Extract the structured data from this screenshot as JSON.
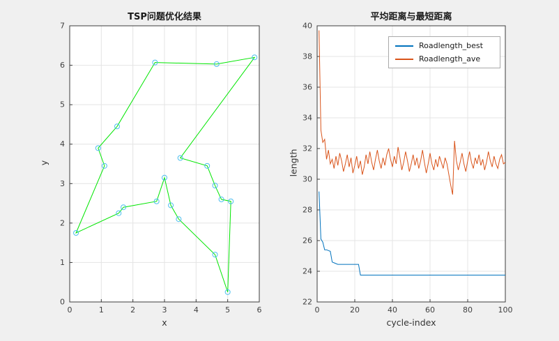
{
  "figure": {
    "bg": "#f0f0f0",
    "axes_bg": "#ffffff",
    "grid_color": "#e4e4e4",
    "axis_color": "#3b3b3b",
    "tick_label_color": "#404040"
  },
  "chart_data": [
    {
      "type": "scatter",
      "title": "TSP问题优化结果",
      "xlabel": "x",
      "ylabel": "y",
      "xlim": [
        0,
        6
      ],
      "ylim": [
        0,
        7
      ],
      "xticks": [
        0,
        1,
        2,
        3,
        4,
        5,
        6
      ],
      "yticks": [
        0,
        1,
        2,
        3,
        4,
        5,
        6,
        7
      ],
      "grid": true,
      "tour_color": "#00e600",
      "marker_color": "#4dbeee",
      "tour_closed": true,
      "points": [
        [
          0.2,
          1.75
        ],
        [
          1.1,
          3.45
        ],
        [
          0.9,
          3.9
        ],
        [
          1.5,
          4.45
        ],
        [
          2.7,
          6.07
        ],
        [
          4.65,
          6.03
        ],
        [
          5.85,
          6.2
        ],
        [
          3.5,
          3.65
        ],
        [
          4.35,
          3.45
        ],
        [
          4.6,
          2.95
        ],
        [
          4.8,
          2.6
        ],
        [
          5.1,
          2.55
        ],
        [
          5.0,
          0.25
        ],
        [
          4.6,
          1.2
        ],
        [
          3.45,
          2.1
        ],
        [
          3.2,
          2.45
        ],
        [
          3.0,
          3.15
        ],
        [
          2.75,
          2.55
        ],
        [
          1.7,
          2.4
        ],
        [
          1.55,
          2.25
        ]
      ]
    },
    {
      "type": "line",
      "title": "平均距离与最短距离",
      "xlabel": "cycle-index",
      "ylabel": "length",
      "xlim": [
        0,
        100
      ],
      "ylim": [
        22,
        40
      ],
      "xticks": [
        0,
        20,
        40,
        60,
        80,
        100
      ],
      "yticks": [
        22,
        24,
        26,
        28,
        30,
        32,
        34,
        36,
        38,
        40
      ],
      "grid": true,
      "legend_position": "top-right",
      "x_start": 1,
      "x_step": 1,
      "series": [
        {
          "name": "Roadlength_best",
          "color": "#0072bd",
          "values": [
            29.2,
            26.1,
            25.9,
            25.4,
            25.4,
            25.35,
            25.3,
            24.6,
            24.55,
            24.5,
            24.45,
            24.45,
            24.45,
            24.45,
            24.45,
            24.45,
            24.45,
            24.45,
            24.45,
            24.45,
            24.45,
            24.45,
            23.75,
            23.75,
            23.75,
            23.75,
            23.75,
            23.75,
            23.75,
            23.75,
            23.75,
            23.75,
            23.75,
            23.75,
            23.75,
            23.75,
            23.75,
            23.75,
            23.75,
            23.75,
            23.75,
            23.75,
            23.75,
            23.75,
            23.75,
            23.75,
            23.75,
            23.75,
            23.75,
            23.75,
            23.75,
            23.75,
            23.75,
            23.75,
            23.75,
            23.75,
            23.75,
            23.75,
            23.75,
            23.75,
            23.75,
            23.75,
            23.75,
            23.75,
            23.75,
            23.75,
            23.75,
            23.75,
            23.75,
            23.75,
            23.75,
            23.75,
            23.75,
            23.75,
            23.75,
            23.75,
            23.75,
            23.75,
            23.75,
            23.75,
            23.75,
            23.75,
            23.75,
            23.75,
            23.75,
            23.75,
            23.75,
            23.75,
            23.75,
            23.75,
            23.75,
            23.75,
            23.75,
            23.75,
            23.75,
            23.75,
            23.75,
            23.75,
            23.75,
            23.75
          ]
        },
        {
          "name": "Roadlength_ave",
          "color": "#d95319",
          "values": [
            39.7,
            33.2,
            32.4,
            32.6,
            31.3,
            31.9,
            31.0,
            31.3,
            30.7,
            31.5,
            30.9,
            31.7,
            31.2,
            30.5,
            31.0,
            31.6,
            30.8,
            31.4,
            30.4,
            30.9,
            31.5,
            30.7,
            31.2,
            30.3,
            30.8,
            31.6,
            31.0,
            31.8,
            31.1,
            30.6,
            31.3,
            31.9,
            31.2,
            30.7,
            31.4,
            30.9,
            31.6,
            32.0,
            31.3,
            30.8,
            31.5,
            31.0,
            32.1,
            31.4,
            30.6,
            31.1,
            31.8,
            31.2,
            30.5,
            31.0,
            31.6,
            30.9,
            31.4,
            30.7,
            31.2,
            31.9,
            31.1,
            30.4,
            31.0,
            31.7,
            31.0,
            30.6,
            31.3,
            30.8,
            31.5,
            31.1,
            30.7,
            31.4,
            31.0,
            30.3,
            29.6,
            29.0,
            32.5,
            31.2,
            30.6,
            31.1,
            31.7,
            31.0,
            30.5,
            31.2,
            31.8,
            31.1,
            30.7,
            31.4,
            31.0,
            31.6,
            30.9,
            31.3,
            30.6,
            31.1,
            31.8,
            31.2,
            30.8,
            31.5,
            31.0,
            30.7,
            31.3,
            31.6,
            31.0,
            31.1
          ]
        }
      ]
    }
  ]
}
